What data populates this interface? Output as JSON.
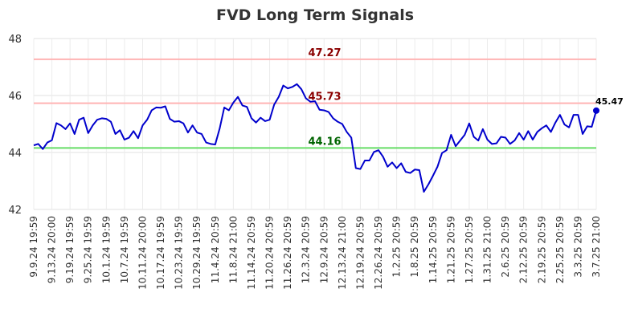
{
  "chart_data": {
    "type": "line",
    "title": "FVD Long Term Signals",
    "xlabel": "",
    "ylabel": "",
    "ylim": [
      42,
      48
    ],
    "yticks": [
      42,
      44,
      46,
      48
    ],
    "grid": true,
    "xtick_labels": [
      "9.9.24 19:59",
      "9.13.24 20:00",
      "9.19.24 19:59",
      "9.25.24 19:59",
      "10.1.24 19:59",
      "10.7.24 19:59",
      "10.11.24 20:00",
      "10.17.24 19:59",
      "10.23.24 19:59",
      "10.29.24 19:59",
      "11.4.24 20:59",
      "11.8.24 21:00",
      "11.14.24 20:59",
      "11.20.24 20:59",
      "11.26.24 20:59",
      "12.3.24 20:59",
      "12.9.24 20:59",
      "12.13.24 21:00",
      "12.19.24 20:59",
      "12.26.24 20:59",
      "1.2.25 20:59",
      "1.8.25 20:59",
      "1.14.25 20:59",
      "1.21.25 20:59",
      "1.27.25 20:59",
      "1.31.25 21:00",
      "2.6.25 20:59",
      "2.12.25 20:59",
      "2.19.25 20:59",
      "2.25.25 20:59",
      "3.3.25 20:59",
      "3.7.25 21:00"
    ],
    "series": [
      {
        "color": "#0000cc",
        "values": [
          44.25,
          44.3,
          44.12,
          44.35,
          44.43,
          45.03,
          44.95,
          44.82,
          45.02,
          44.65,
          45.15,
          45.22,
          44.68,
          44.95,
          45.15,
          45.2,
          45.18,
          45.08,
          44.65,
          44.78,
          44.45,
          44.52,
          44.75,
          44.5,
          44.95,
          45.15,
          45.48,
          45.58,
          45.57,
          45.62,
          45.18,
          45.08,
          45.1,
          45.02,
          44.7,
          44.95,
          44.7,
          44.65,
          44.35,
          44.3,
          44.28,
          44.85,
          45.58,
          45.48,
          45.75,
          45.95,
          45.65,
          45.6,
          45.2,
          45.05,
          45.22,
          45.1,
          45.15,
          45.68,
          45.95,
          46.35,
          46.25,
          46.3,
          46.4,
          46.22,
          45.9,
          45.78,
          45.8,
          45.5,
          45.48,
          45.42,
          45.2,
          45.08,
          45.0,
          44.72,
          44.52,
          43.45,
          43.42,
          43.72,
          43.72,
          44.02,
          44.08,
          43.85,
          43.5,
          43.65,
          43.45,
          43.62,
          43.32,
          43.28,
          43.4,
          43.38,
          42.62,
          42.88,
          43.18,
          43.5,
          43.98,
          44.08,
          44.62,
          44.22,
          44.42,
          44.62,
          45.02,
          44.55,
          44.42,
          44.82,
          44.45,
          44.3,
          44.32,
          44.55,
          44.52,
          44.3,
          44.42,
          44.68,
          44.45,
          44.75,
          44.45,
          44.72,
          44.85,
          44.95,
          44.72,
          45.05,
          45.32,
          44.98,
          44.88,
          45.32,
          45.32,
          44.65,
          44.92,
          44.9,
          45.47
        ]
      }
    ],
    "reference_lines": [
      {
        "value": 47.27,
        "label": "47.27",
        "line_color": "#ffb3b3",
        "label_color": "#8b0000"
      },
      {
        "value": 45.73,
        "label": "45.73",
        "line_color": "#ffb3b3",
        "label_color": "#8b0000"
      },
      {
        "value": 44.16,
        "label": "44.16",
        "line_color": "#66dd66",
        "label_color": "#006400"
      }
    ],
    "last_value_label": "45.47",
    "last_point_color": "#0000cc"
  }
}
